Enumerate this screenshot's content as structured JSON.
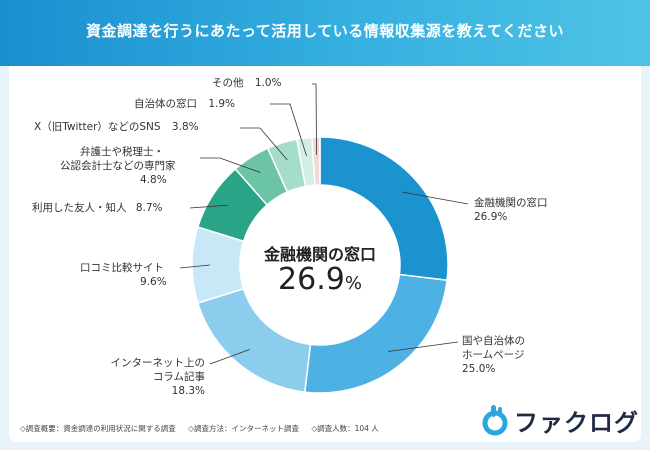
{
  "header": {
    "title": "資金調達を行うにあたって活用している情報収集源を教えてください"
  },
  "colors": {
    "banner": "#1a8fd0",
    "accent": "#2aa7de"
  },
  "chart_data": {
    "type": "pie",
    "title": "資金調達を行うにあたって活用している情報収集源を教えてください",
    "donut": true,
    "center": {
      "name": "金融機関の窓口",
      "value": "26.9",
      "unit": "%"
    },
    "slices": [
      {
        "name": "金融機関の窓口",
        "value": 26.9,
        "pct_label": "26.9%",
        "color": "#1a93cf"
      },
      {
        "name": "国や自治体のホームページ",
        "value": 25.0,
        "pct_label": "25.0%",
        "color": "#4db2e3"
      },
      {
        "name": "インターネット上のコラム記事",
        "value": 18.3,
        "pct_label": "18.3%",
        "color": "#8ccdee"
      },
      {
        "name": "口コミ比較サイト",
        "value": 9.6,
        "pct_label": "9.6%",
        "color": "#c8e8f8"
      },
      {
        "name": "利用した友人・知人",
        "value": 8.7,
        "pct_label": "8.7%",
        "color": "#2aa486"
      },
      {
        "name": "弁護士や税理士・公認会計士などの専門家",
        "value": 4.8,
        "pct_label": "4.8%",
        "color": "#6cc4a8"
      },
      {
        "name": "X（旧Twitter）などのSNS",
        "value": 3.8,
        "pct_label": "3.8%",
        "color": "#a6dccb"
      },
      {
        "name": "自治体の窓口",
        "value": 1.9,
        "pct_label": "1.9%",
        "color": "#d3eee5"
      },
      {
        "name": "その他",
        "value": 1.0,
        "pct_label": "1.0%",
        "color": "#f3d6d8"
      }
    ]
  },
  "labels": {
    "s0_line1": "金融機関の窓口",
    "s1_line1": "国や自治体の",
    "s1_line2": "ホームページ",
    "s2_line1": "インターネット上の",
    "s2_line2": "コラム記事",
    "s3_line1": "口コミ比較サイト",
    "s4_line1": "利用した友人・知人",
    "s5_line1": "弁護士や税理士・",
    "s5_line2": "公認会計士などの専門家",
    "s6_line1": "X（旧Twitter）などのSNS",
    "s7_line1": "自治体の窓口",
    "s8_line1": "その他"
  },
  "footer": {
    "overview": "◇調査概要：資金調達の利用状況に関する調査",
    "method": "◇調査方法：インターネット調査",
    "count": "◇調査人数：104 人"
  },
  "logo": {
    "text": "ファクログ"
  }
}
